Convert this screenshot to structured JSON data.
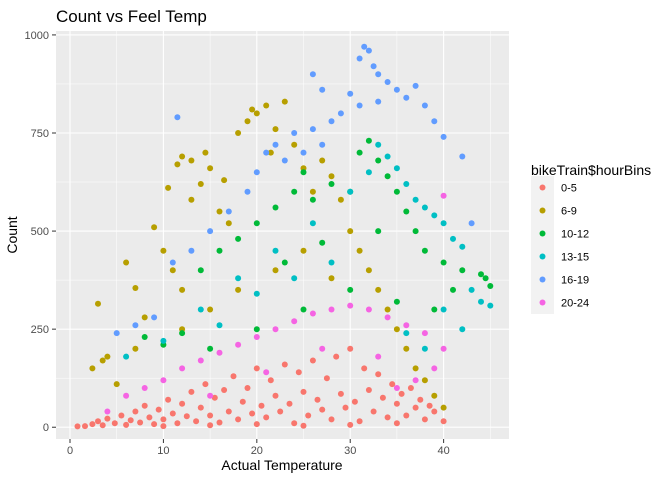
{
  "chart_data": {
    "type": "scatter",
    "title": "Count vs Feel Temp",
    "xlabel": "Actual Temperature",
    "ylabel": "Count",
    "xlim": [
      -1.5,
      47
    ],
    "ylim": [
      -30,
      1010
    ],
    "x_ticks": [
      0,
      10,
      20,
      30,
      40
    ],
    "y_ticks": [
      0,
      250,
      500,
      750,
      1000
    ],
    "x_tick_labels": [
      "0",
      "10",
      "20",
      "30",
      "40"
    ],
    "y_tick_labels": [
      "0",
      "250",
      "500",
      "750",
      "1000"
    ],
    "grid": true,
    "legend_position": "right",
    "legend_title": "bikeTrain$hourBins",
    "series": [
      {
        "name": "0-5",
        "color": "#F8766D",
        "points": [
          [
            0.8,
            2
          ],
          [
            1.6,
            3
          ],
          [
            2.4,
            8
          ],
          [
            3,
            15
          ],
          [
            3.5,
            5
          ],
          [
            4,
            22
          ],
          [
            4.8,
            10
          ],
          [
            5.5,
            30
          ],
          [
            6,
            6
          ],
          [
            6.5,
            18
          ],
          [
            7,
            40
          ],
          [
            7.5,
            12
          ],
          [
            8,
            55
          ],
          [
            8.5,
            25
          ],
          [
            9,
            8
          ],
          [
            9.5,
            45
          ],
          [
            10,
            20
          ],
          [
            10.5,
            70
          ],
          [
            11,
            35
          ],
          [
            11.5,
            10
          ],
          [
            12,
            60
          ],
          [
            12.5,
            28
          ],
          [
            13,
            90
          ],
          [
            13.5,
            15
          ],
          [
            14,
            50
          ],
          [
            14.5,
            110
          ],
          [
            15,
            30
          ],
          [
            15.5,
            75
          ],
          [
            16,
            12
          ],
          [
            16.5,
            95
          ],
          [
            17,
            40
          ],
          [
            17.5,
            130
          ],
          [
            18,
            20
          ],
          [
            18.5,
            65
          ],
          [
            19,
            100
          ],
          [
            19.5,
            35
          ],
          [
            20,
            150
          ],
          [
            20.5,
            55
          ],
          [
            21,
            25
          ],
          [
            21.5,
            120
          ],
          [
            22,
            80
          ],
          [
            22.5,
            40
          ],
          [
            23,
            160
          ],
          [
            23.5,
            60
          ],
          [
            24,
            10
          ],
          [
            24.5,
            140
          ],
          [
            25,
            90
          ],
          [
            25.5,
            30
          ],
          [
            26,
            170
          ],
          [
            26.5,
            70
          ],
          [
            27,
            45
          ],
          [
            27.5,
            125
          ],
          [
            28,
            20
          ],
          [
            28.5,
            180
          ],
          [
            29,
            85
          ],
          [
            29.5,
            50
          ],
          [
            30,
            200
          ],
          [
            30.5,
            65
          ],
          [
            31,
            15
          ],
          [
            31.5,
            150
          ],
          [
            32,
            95
          ],
          [
            32.5,
            40
          ],
          [
            33,
            135
          ],
          [
            33.5,
            75
          ],
          [
            34,
            25
          ],
          [
            34.5,
            110
          ],
          [
            35,
            60
          ],
          [
            35.5,
            85
          ],
          [
            36,
            30
          ],
          [
            36.5,
            100
          ],
          [
            37,
            50
          ],
          [
            37.5,
            70
          ],
          [
            38,
            20
          ],
          [
            38.5,
            55
          ],
          [
            39,
            40
          ],
          [
            40,
            15
          ],
          [
            15,
            5
          ],
          [
            20,
            8
          ],
          [
            25,
            4
          ],
          [
            30,
            6
          ],
          [
            10,
            3
          ],
          [
            35,
            10
          ]
        ]
      },
      {
        "name": "6-9",
        "color": "#B79F00",
        "points": [
          [
            2.4,
            150
          ],
          [
            3,
            315
          ],
          [
            3.5,
            170
          ],
          [
            4,
            180
          ],
          [
            5,
            110
          ],
          [
            6,
            420
          ],
          [
            7,
            355
          ],
          [
            7,
            200
          ],
          [
            8,
            280
          ],
          [
            9,
            510
          ],
          [
            10,
            450
          ],
          [
            10.5,
            610
          ],
          [
            11,
            400
          ],
          [
            11.5,
            670
          ],
          [
            12,
            690
          ],
          [
            12,
            350
          ],
          [
            13,
            680
          ],
          [
            13,
            580
          ],
          [
            14,
            620
          ],
          [
            14.5,
            700
          ],
          [
            15,
            660
          ],
          [
            16,
            550
          ],
          [
            16.5,
            630
          ],
          [
            17,
            520
          ],
          [
            18,
            750
          ],
          [
            19,
            780
          ],
          [
            19.5,
            810
          ],
          [
            20,
            800
          ],
          [
            21,
            820
          ],
          [
            21.5,
            700
          ],
          [
            22,
            760
          ],
          [
            23,
            830
          ],
          [
            24,
            720
          ],
          [
            25,
            660
          ],
          [
            26,
            600
          ],
          [
            27,
            680
          ],
          [
            28,
            640
          ],
          [
            29,
            580
          ],
          [
            30,
            500
          ],
          [
            31,
            450
          ],
          [
            32,
            400
          ],
          [
            33,
            350
          ],
          [
            34,
            300
          ],
          [
            35,
            250
          ],
          [
            36,
            200
          ],
          [
            37,
            150
          ],
          [
            38,
            120
          ],
          [
            39,
            80
          ],
          [
            40,
            50
          ],
          [
            12,
            250
          ],
          [
            15,
            300
          ],
          [
            18,
            350
          ],
          [
            22,
            400
          ],
          [
            25,
            450
          ],
          [
            28,
            380
          ]
        ]
      },
      {
        "name": "10-12",
        "color": "#00BA38",
        "points": [
          [
            8,
            230
          ],
          [
            10,
            210
          ],
          [
            12,
            240
          ],
          [
            14,
            400
          ],
          [
            16,
            450
          ],
          [
            18,
            480
          ],
          [
            20,
            520
          ],
          [
            22,
            560
          ],
          [
            24,
            600
          ],
          [
            25,
            650
          ],
          [
            26,
            580
          ],
          [
            28,
            620
          ],
          [
            30,
            600
          ],
          [
            31,
            700
          ],
          [
            32,
            730
          ],
          [
            33,
            680
          ],
          [
            34,
            640
          ],
          [
            35,
            600
          ],
          [
            36,
            550
          ],
          [
            37,
            500
          ],
          [
            38,
            450
          ],
          [
            40,
            420
          ],
          [
            42,
            400
          ],
          [
            44,
            390
          ],
          [
            44.5,
            380
          ],
          [
            45,
            360
          ],
          [
            41,
            350
          ],
          [
            39,
            300
          ],
          [
            15,
            200
          ],
          [
            20,
            250
          ],
          [
            25,
            300
          ],
          [
            30,
            350
          ],
          [
            35,
            320
          ],
          [
            23,
            420
          ],
          [
            27,
            470
          ],
          [
            33,
            500
          ]
        ]
      },
      {
        "name": "13-15",
        "color": "#00BFC4",
        "points": [
          [
            6,
            180
          ],
          [
            10,
            220
          ],
          [
            14,
            300
          ],
          [
            18,
            380
          ],
          [
            22,
            450
          ],
          [
            26,
            520
          ],
          [
            30,
            600
          ],
          [
            32,
            650
          ],
          [
            33,
            720
          ],
          [
            34,
            690
          ],
          [
            35,
            660
          ],
          [
            36,
            620
          ],
          [
            37,
            580
          ],
          [
            38,
            560
          ],
          [
            39,
            540
          ],
          [
            40,
            520
          ],
          [
            41,
            480
          ],
          [
            42,
            460
          ],
          [
            43,
            350
          ],
          [
            44,
            320
          ],
          [
            45,
            310
          ],
          [
            40,
            300
          ],
          [
            42,
            250
          ],
          [
            38,
            200
          ],
          [
            36,
            240
          ],
          [
            28,
            420
          ],
          [
            24,
            380
          ],
          [
            20,
            340
          ],
          [
            16,
            260
          ]
        ]
      },
      {
        "name": "16-19",
        "color": "#619CFF",
        "points": [
          [
            5,
            240
          ],
          [
            7,
            260
          ],
          [
            9,
            280
          ],
          [
            11,
            420
          ],
          [
            11.5,
            790
          ],
          [
            13,
            450
          ],
          [
            15,
            500
          ],
          [
            17,
            550
          ],
          [
            19,
            600
          ],
          [
            20,
            650
          ],
          [
            21,
            700
          ],
          [
            22,
            720
          ],
          [
            23,
            680
          ],
          [
            24,
            750
          ],
          [
            25,
            700
          ],
          [
            26,
            760
          ],
          [
            27,
            720
          ],
          [
            28,
            780
          ],
          [
            29,
            800
          ],
          [
            30,
            850
          ],
          [
            31,
            940
          ],
          [
            31.5,
            970
          ],
          [
            32,
            960
          ],
          [
            32.5,
            920
          ],
          [
            33,
            900
          ],
          [
            34,
            880
          ],
          [
            35,
            860
          ],
          [
            36,
            840
          ],
          [
            37,
            870
          ],
          [
            38,
            820
          ],
          [
            39,
            780
          ],
          [
            40,
            740
          ],
          [
            42,
            690
          ],
          [
            43,
            520
          ],
          [
            26,
            900
          ],
          [
            27,
            860
          ],
          [
            31,
            820
          ],
          [
            33,
            830
          ]
        ]
      },
      {
        "name": "20-24",
        "color": "#F564E3",
        "points": [
          [
            4,
            40
          ],
          [
            6,
            80
          ],
          [
            8,
            100
          ],
          [
            10,
            120
          ],
          [
            12,
            150
          ],
          [
            14,
            170
          ],
          [
            16,
            190
          ],
          [
            18,
            210
          ],
          [
            20,
            230
          ],
          [
            22,
            250
          ],
          [
            24,
            270
          ],
          [
            26,
            290
          ],
          [
            28,
            300
          ],
          [
            30,
            310
          ],
          [
            32,
            300
          ],
          [
            34,
            280
          ],
          [
            36,
            260
          ],
          [
            38,
            240
          ],
          [
            40,
            590
          ],
          [
            40,
            200
          ],
          [
            39,
            150
          ],
          [
            37,
            120
          ],
          [
            35,
            100
          ],
          [
            15,
            80
          ],
          [
            21,
            140
          ],
          [
            27,
            200
          ],
          [
            33,
            180
          ]
        ]
      }
    ]
  }
}
